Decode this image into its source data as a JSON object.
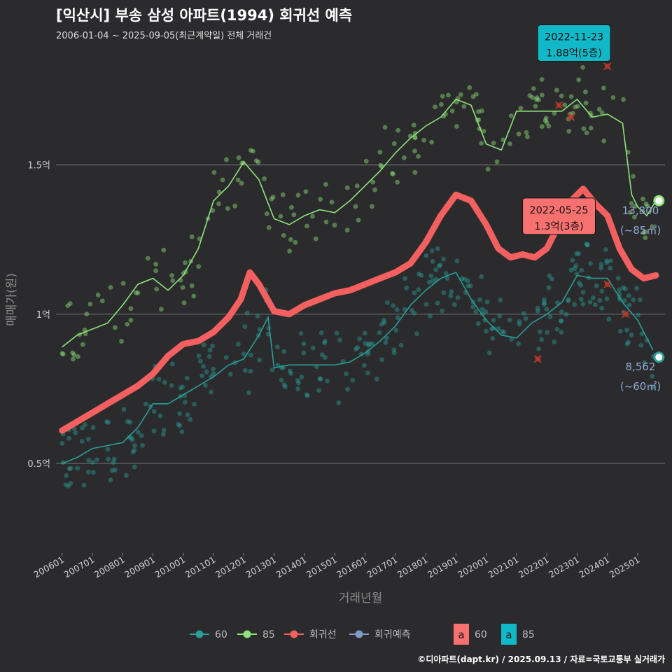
{
  "header": {
    "title": "[익산시] 부송 삼성 아파트(1994) 회귀선 예측",
    "subtitle": "2006-01-04 ~ 2025-09-05(최근계약일) 전체 거래건"
  },
  "footer": {
    "credit": "©디아파트(dapt.kr) / 2025.09.13 / 자료=국토교통부 실거래가"
  },
  "colors": {
    "background": "#2b2b2d",
    "s60": "#2a9d96",
    "s85": "#8ee27a",
    "regression": "#f4605f",
    "forecast": "#7f9bc9",
    "outlier": "#c0392b",
    "label_60_bg": "#f87171",
    "label_85_bg": "#11b8c8"
  },
  "chart_data": {
    "type": "line",
    "title": "[익산시] 부송 삼성 아파트(1994) 회귀선 예측",
    "subtitle": "2006-01-04 ~ 2025-09-05(최근계약일) 전체 거래건",
    "xlabel": "거래년월",
    "ylabel": "매매가(원)",
    "ylim": [
      0.2,
      1.9
    ],
    "y_ticks": [
      {
        "value": 0.5,
        "label": "0.5억"
      },
      {
        "value": 1.0,
        "label": "1억"
      },
      {
        "value": 1.5,
        "label": "1.5억"
      }
    ],
    "x_range": [
      2005.8,
      2025.9
    ],
    "x_ticks": [
      "200601",
      "200701",
      "200801",
      "200901",
      "201001",
      "201101",
      "201201",
      "201301",
      "201401",
      "201501",
      "201601",
      "201701",
      "201801",
      "201901",
      "202001",
      "202101",
      "202201",
      "202301",
      "202401",
      "202501"
    ],
    "grid": true,
    "legend_position": "bottom",
    "legend": {
      "items": [
        {
          "key": "s60",
          "label": "60"
        },
        {
          "key": "s85",
          "label": "85"
        },
        {
          "key": "regression",
          "label": "회귀선"
        },
        {
          "key": "forecast",
          "label": "회귀예측"
        }
      ],
      "boxes": [
        {
          "key": "s60",
          "label": "60",
          "letter": "a"
        },
        {
          "key": "s85",
          "label": "85",
          "letter": "a"
        }
      ]
    },
    "series": [
      {
        "name": "85",
        "key": "s85",
        "x": [
          2006.0,
          2006.5,
          2007.0,
          2007.5,
          2008.0,
          2008.5,
          2009.0,
          2009.5,
          2010.0,
          2010.5,
          2011.0,
          2011.5,
          2012.0,
          2012.5,
          2013.0,
          2013.5,
          2014.0,
          2014.5,
          2015.0,
          2015.5,
          2016.0,
          2016.5,
          2017.0,
          2017.5,
          2018.0,
          2018.5,
          2019.0,
          2019.5,
          2020.0,
          2020.5,
          2021.0,
          2021.5,
          2022.0,
          2022.5,
          2023.0,
          2023.5,
          2024.0,
          2024.5,
          2024.8,
          2025.0,
          2025.3,
          2025.6
        ],
        "values": [
          0.89,
          0.93,
          0.95,
          0.97,
          1.03,
          1.1,
          1.12,
          1.08,
          1.13,
          1.22,
          1.38,
          1.43,
          1.51,
          1.45,
          1.32,
          1.3,
          1.33,
          1.35,
          1.34,
          1.38,
          1.43,
          1.48,
          1.54,
          1.59,
          1.63,
          1.66,
          1.72,
          1.7,
          1.57,
          1.55,
          1.68,
          1.68,
          1.68,
          1.68,
          1.72,
          1.66,
          1.67,
          1.64,
          1.4,
          1.36,
          1.33,
          1.38
        ]
      },
      {
        "name": "60",
        "key": "s60",
        "x": [
          2006.0,
          2006.5,
          2007.0,
          2007.5,
          2008.0,
          2008.5,
          2009.0,
          2009.5,
          2010.0,
          2010.5,
          2011.0,
          2011.5,
          2012.0,
          2012.5,
          2012.8,
          2013.0,
          2013.5,
          2014.0,
          2014.5,
          2015.0,
          2015.5,
          2016.0,
          2016.5,
          2017.0,
          2017.5,
          2018.0,
          2018.5,
          2019.0,
          2019.5,
          2020.0,
          2020.5,
          2021.0,
          2021.5,
          2022.0,
          2022.5,
          2023.0,
          2023.5,
          2024.0,
          2024.5,
          2025.0,
          2025.5
        ],
        "values": [
          0.5,
          0.52,
          0.55,
          0.56,
          0.57,
          0.62,
          0.7,
          0.7,
          0.73,
          0.76,
          0.79,
          0.83,
          0.85,
          0.93,
          0.99,
          0.82,
          0.83,
          0.83,
          0.83,
          0.83,
          0.84,
          0.87,
          0.91,
          0.96,
          1.03,
          1.08,
          1.12,
          1.14,
          1.05,
          0.98,
          0.93,
          0.92,
          0.97,
          1.0,
          1.04,
          1.13,
          1.12,
          1.12,
          1.04,
          0.98,
          0.88
        ]
      },
      {
        "name": "회귀선",
        "key": "regression",
        "x": [
          2006.0,
          2006.5,
          2007.0,
          2007.5,
          2008.0,
          2008.5,
          2009.0,
          2009.5,
          2010.0,
          2010.5,
          2011.0,
          2011.5,
          2011.9,
          2012.2,
          2012.5,
          2013.0,
          2013.5,
          2014.0,
          2014.5,
          2015.0,
          2015.5,
          2016.0,
          2016.5,
          2017.0,
          2017.5,
          2018.0,
          2018.5,
          2019.0,
          2019.5,
          2020.0,
          2020.4,
          2020.8,
          2021.2,
          2021.6,
          2022.0,
          2022.4,
          2022.8,
          2023.2,
          2023.6,
          2024.0,
          2024.4,
          2024.8,
          2025.2,
          2025.6
        ],
        "values": [
          0.61,
          0.64,
          0.67,
          0.7,
          0.73,
          0.76,
          0.8,
          0.86,
          0.9,
          0.91,
          0.94,
          0.99,
          1.05,
          1.14,
          1.1,
          1.01,
          1.0,
          1.03,
          1.05,
          1.07,
          1.08,
          1.1,
          1.12,
          1.14,
          1.17,
          1.24,
          1.33,
          1.4,
          1.38,
          1.3,
          1.22,
          1.19,
          1.2,
          1.19,
          1.22,
          1.3,
          1.38,
          1.42,
          1.37,
          1.33,
          1.22,
          1.15,
          1.12,
          1.13
        ]
      }
    ],
    "outliers": [
      {
        "x": 2021.7,
        "y": 0.85
      },
      {
        "x": 2022.4,
        "y": 1.7
      },
      {
        "x": 2022.8,
        "y": 1.66
      },
      {
        "x": 2024.0,
        "y": 1.1
      },
      {
        "x": 2024.0,
        "y": 1.83
      },
      {
        "x": 2024.6,
        "y": 1.0
      }
    ],
    "endpoints": [
      {
        "key": "s85",
        "x": 2025.7,
        "y": 1.38,
        "value_label": "13,800",
        "area_label": "(~85㎡)"
      },
      {
        "key": "s60",
        "x": 2025.7,
        "y": 0.856,
        "value_label": "8,562",
        "area_label": "(~60㎡)"
      }
    ],
    "annotations": [
      {
        "key": "label_85_bg",
        "x": 2022.9,
        "y": 1.88,
        "date": "2022-11-23",
        "price": "1.88억(5층)"
      },
      {
        "key": "label_60_bg",
        "x": 2022.4,
        "y": 1.3,
        "date": "2022-05-25",
        "price": "1.3억(3층)"
      }
    ]
  }
}
